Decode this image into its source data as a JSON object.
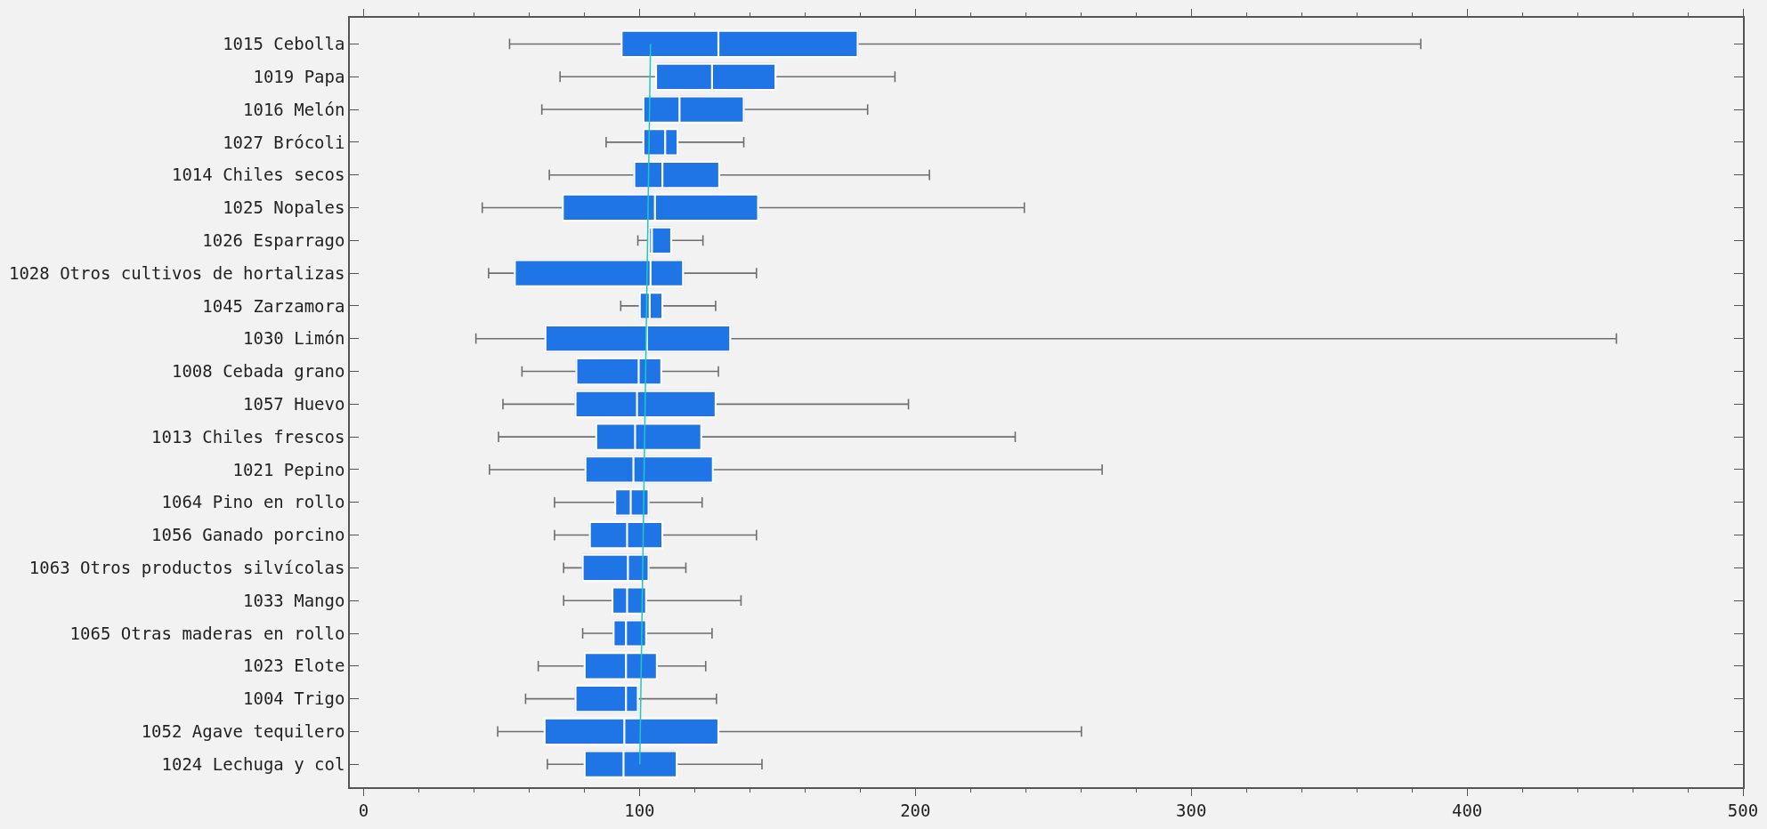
{
  "chart_data": {
    "type": "box",
    "orientation": "horizontal",
    "color": "#1f75e6",
    "categories": [
      "1015 Cebolla",
      "1019 Papa",
      "1016 Melón",
      "1027 Brócoli",
      "1014 Chiles secos",
      "1025 Nopales",
      "1026 Esparrago",
      "1028 Otros cultivos de hortalizas",
      "1045 Zarzamora",
      "1030 Limón",
      "1008 Cebada grano",
      "1057 Huevo",
      "1013 Chiles frescos",
      "1021 Pepino",
      "1064 Pino en rollo",
      "1056 Ganado porcino",
      "1063 Otros productos silvícolas",
      "1033 Mango",
      "1065 Otras maderas en rollo",
      "1023 Elote",
      "1004 Trigo",
      "1052 Agave tequilero",
      "1024 Lechuga y col"
    ],
    "boxes": [
      {
        "low": 52.9,
        "q1": 93.5,
        "median": 128.6,
        "q3": 179.1,
        "high": 383.2
      },
      {
        "low": 71.2,
        "q1": 106.0,
        "median": 126.3,
        "q3": 149.3,
        "high": 192.6
      },
      {
        "low": 64.6,
        "q1": 101.4,
        "median": 114.5,
        "q3": 137.8,
        "high": 182.7
      },
      {
        "low": 87.9,
        "q1": 101.4,
        "median": 109.3,
        "q3": 113.8,
        "high": 137.8
      },
      {
        "low": 67.3,
        "q1": 98.1,
        "median": 108.3,
        "q3": 128.9,
        "high": 205.1
      },
      {
        "low": 43.0,
        "q1": 72.2,
        "median": 105.6,
        "q3": 143.0,
        "high": 239.5
      },
      {
        "low": 99.4,
        "q1": 103.5,
        "median": 104.5,
        "q3": 111.5,
        "high": 123.0
      },
      {
        "low": 45.3,
        "q1": 54.8,
        "median": 104.0,
        "q3": 115.8,
        "high": 142.4
      },
      {
        "low": 93.2,
        "q1": 100.1,
        "median": 103.7,
        "q3": 108.3,
        "high": 127.6
      },
      {
        "low": 40.7,
        "q1": 65.9,
        "median": 102.7,
        "q3": 132.9,
        "high": 454.1
      },
      {
        "low": 57.4,
        "q1": 77.1,
        "median": 99.7,
        "q3": 107.9,
        "high": 128.6
      },
      {
        "low": 50.5,
        "q1": 76.8,
        "median": 99.1,
        "q3": 127.6,
        "high": 197.5
      },
      {
        "low": 48.9,
        "q1": 84.3,
        "median": 98.4,
        "q3": 122.4,
        "high": 236.2
      },
      {
        "low": 45.6,
        "q1": 80.4,
        "median": 97.8,
        "q3": 126.6,
        "high": 267.7
      },
      {
        "low": 69.2,
        "q1": 91.2,
        "median": 96.8,
        "q3": 103.3,
        "high": 122.7
      },
      {
        "low": 69.2,
        "q1": 82.0,
        "median": 95.5,
        "q3": 108.3,
        "high": 142.4
      },
      {
        "low": 72.5,
        "q1": 79.4,
        "median": 95.8,
        "q3": 103.3,
        "high": 116.8
      },
      {
        "low": 72.5,
        "q1": 90.2,
        "median": 95.5,
        "q3": 102.4,
        "high": 136.8
      },
      {
        "low": 79.4,
        "q1": 90.6,
        "median": 95.1,
        "q3": 102.4,
        "high": 126.3
      },
      {
        "low": 63.3,
        "q1": 80.1,
        "median": 95.1,
        "q3": 106.3,
        "high": 124.0
      },
      {
        "low": 58.7,
        "q1": 76.8,
        "median": 95.1,
        "q3": 99.4,
        "high": 127.9
      },
      {
        "low": 48.6,
        "q1": 65.6,
        "median": 94.5,
        "q3": 128.6,
        "high": 260.2
      },
      {
        "low": 66.6,
        "q1": 80.1,
        "median": 94.2,
        "q3": 113.5,
        "high": 144.4
      }
    ],
    "series": [
      {
        "type": "line",
        "color": "#20c8c0",
        "values": [
          104.0,
          null,
          null,
          null,
          null,
          null,
          null,
          null,
          null,
          null,
          null,
          null,
          null,
          null,
          null,
          null,
          null,
          null,
          null,
          null,
          null,
          null,
          100.1
        ]
      }
    ],
    "xlim": [
      -5,
      500
    ],
    "xticks": [
      0,
      100,
      200,
      300,
      400,
      500
    ],
    "grid": false
  }
}
